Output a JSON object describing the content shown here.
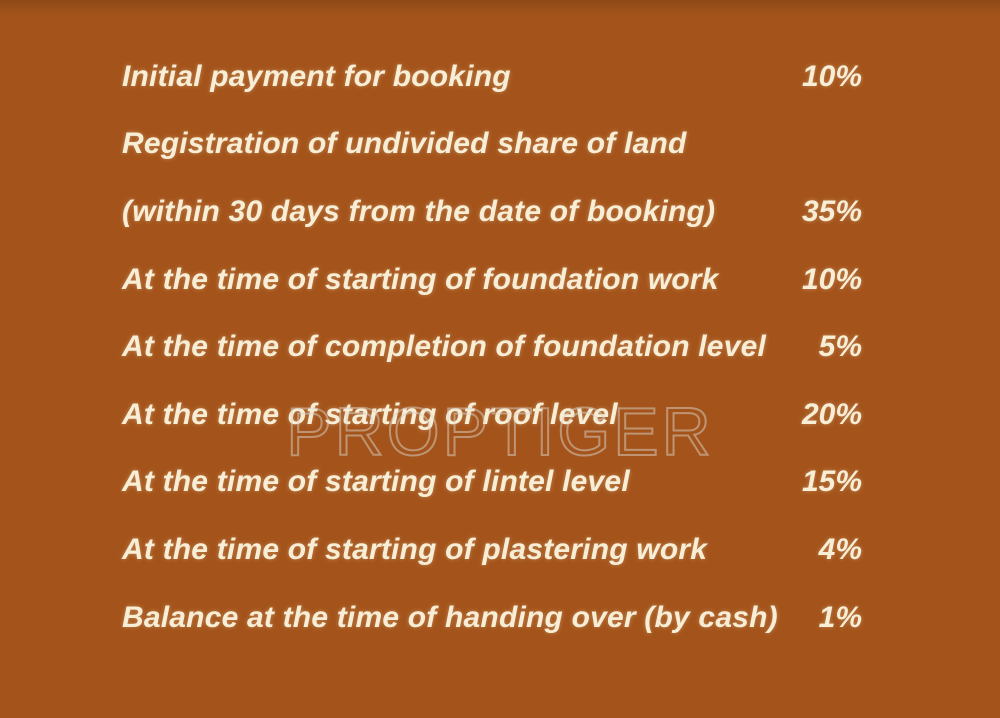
{
  "page": {
    "background_color": "#A4541B",
    "text_color": "#F8EED6"
  },
  "watermark": {
    "text": "PROPTIGER"
  },
  "schedule": {
    "rows": [
      {
        "label": "Initial payment for booking",
        "percent": "10%"
      },
      {
        "label": "Registration of undivided share of land",
        "percent": ""
      },
      {
        "label": "(within 30 days from the date of booking)",
        "percent": "35%"
      },
      {
        "label": "At the time of starting of foundation work",
        "percent": "10%"
      },
      {
        "label": "At the time of completion of foundation level",
        "percent": "5%"
      },
      {
        "label": "At the time of starting of roof level",
        "percent": "20%"
      },
      {
        "label": "At the time of starting of lintel level",
        "percent": "15%"
      },
      {
        "label": "At the time of starting of plastering work",
        "percent": "4%"
      },
      {
        "label": "Balance at the time of handing over (by cash)",
        "percent": "1%"
      }
    ]
  }
}
